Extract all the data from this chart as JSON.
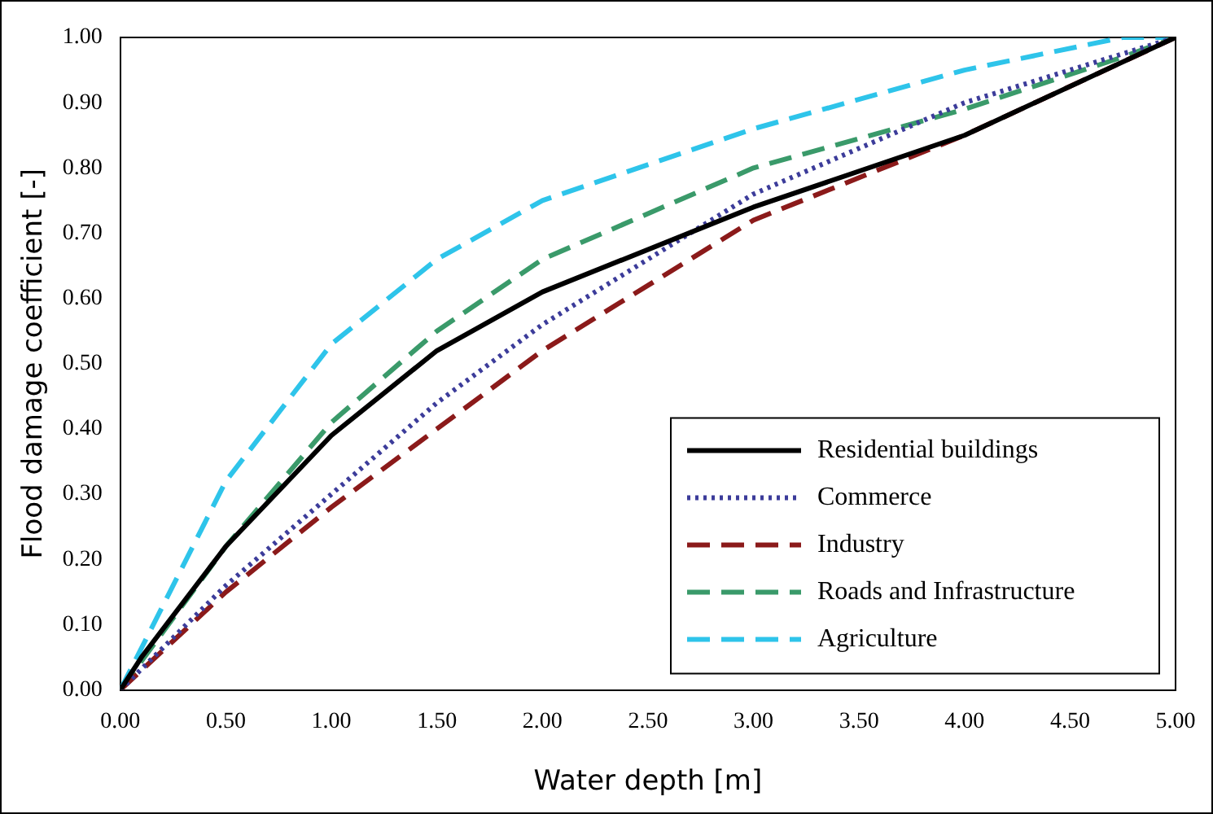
{
  "chart_data": {
    "type": "line",
    "xlabel": "Water depth [m]",
    "ylabel": "Flood damage coefficient [-]",
    "xlim": [
      0,
      5
    ],
    "ylim": [
      0,
      1
    ],
    "xticks": [
      {
        "value": 0,
        "label": "0.00"
      },
      {
        "value": 0.5,
        "label": "0.50"
      },
      {
        "value": 1,
        "label": "1.00"
      },
      {
        "value": 1.5,
        "label": "1.50"
      },
      {
        "value": 2,
        "label": "2.00"
      },
      {
        "value": 2.5,
        "label": "2.50"
      },
      {
        "value": 3,
        "label": "3.00"
      },
      {
        "value": 3.5,
        "label": "3.50"
      },
      {
        "value": 4,
        "label": "4.00"
      },
      {
        "value": 4.5,
        "label": "4.50"
      },
      {
        "value": 5,
        "label": "5.00"
      }
    ],
    "yticks": [
      {
        "value": 0,
        "label": "0.00"
      },
      {
        "value": 0.1,
        "label": "0.10"
      },
      {
        "value": 0.2,
        "label": "0.20"
      },
      {
        "value": 0.3,
        "label": "0.30"
      },
      {
        "value": 0.4,
        "label": "0.40"
      },
      {
        "value": 0.5,
        "label": "0.50"
      },
      {
        "value": 0.6,
        "label": "0.60"
      },
      {
        "value": 0.7,
        "label": "0.70"
      },
      {
        "value": 0.8,
        "label": "0.80"
      },
      {
        "value": 0.9,
        "label": "0.90"
      },
      {
        "value": 1,
        "label": "1.00"
      }
    ],
    "grid": false,
    "legend": "bottom right",
    "marker": "none",
    "series": [
      {
        "name": "Residential buildings",
        "color": "#000000",
        "line_style": "solid",
        "x": [
          0,
          0.1,
          0.5,
          1,
          1.5,
          2,
          3,
          4,
          5
        ],
        "values": [
          0,
          0.05,
          0.22,
          0.39,
          0.52,
          0.61,
          0.74,
          0.85,
          1
        ]
      },
      {
        "name": "Commerce",
        "color": "#3c3c9a",
        "line_style": "dotted",
        "x": [
          0,
          0.5,
          1,
          1.5,
          2,
          3,
          4,
          5
        ],
        "values": [
          0,
          0.16,
          0.3,
          0.44,
          0.56,
          0.76,
          0.9,
          1
        ]
      },
      {
        "name": "Industry",
        "color": "#8b1a1a",
        "line_style": "dashed",
        "x": [
          0,
          0.5,
          1,
          1.5,
          2,
          3,
          4,
          5
        ],
        "values": [
          0,
          0.15,
          0.28,
          0.4,
          0.52,
          0.72,
          0.85,
          1
        ]
      },
      {
        "name": "Roads and Infrastructure",
        "color": "#3a9a6a",
        "line_style": "dashed",
        "x": [
          0,
          0.5,
          1,
          1.5,
          2,
          3,
          4,
          4.75,
          5
        ],
        "values": [
          0,
          0.22,
          0.41,
          0.55,
          0.66,
          0.8,
          0.89,
          0.97,
          1
        ]
      },
      {
        "name": "Agriculture",
        "color": "#2ec4ea",
        "line_style": "dashed",
        "x": [
          0,
          0.5,
          1,
          1.5,
          2,
          3,
          4,
          4.75,
          5
        ],
        "values": [
          0,
          0.32,
          0.53,
          0.66,
          0.75,
          0.86,
          0.95,
          1,
          1
        ]
      }
    ]
  }
}
